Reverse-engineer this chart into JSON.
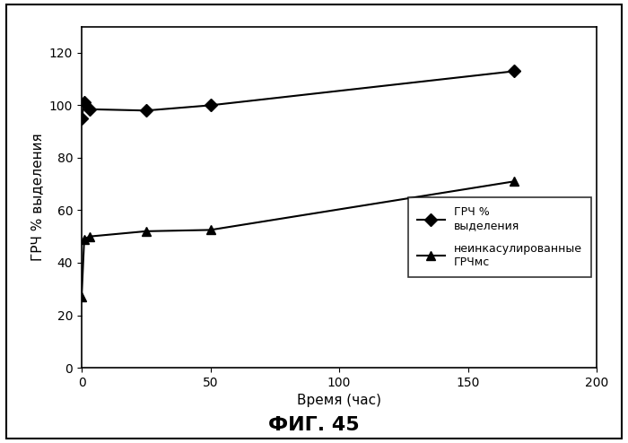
{
  "series1_x": [
    0,
    1,
    3,
    25,
    50,
    168
  ],
  "series1_y": [
    95,
    101,
    98.5,
    98,
    100,
    113
  ],
  "series2_x": [
    0,
    1,
    3,
    25,
    50,
    168
  ],
  "series2_y": [
    27,
    49,
    50,
    52,
    52.5,
    71
  ],
  "series1_label": "ГРЧ %\nвыделения",
  "series2_label": "неинкасулированные\nГРЧмс",
  "xlabel": "Время (час)",
  "ylabel": "ГРЧ % выделения",
  "title": "ФИГ. 45",
  "xlim": [
    0,
    200
  ],
  "ylim": [
    0,
    130
  ],
  "xticks": [
    0,
    50,
    100,
    150,
    200
  ],
  "yticks": [
    0,
    20,
    40,
    60,
    80,
    100,
    120
  ],
  "line_color": "#000000",
  "marker1": "D",
  "marker2": "^",
  "background_color": "#ffffff",
  "legend_fontsize": 9,
  "axis_fontsize": 11,
  "title_fontsize": 16,
  "tick_fontsize": 10
}
